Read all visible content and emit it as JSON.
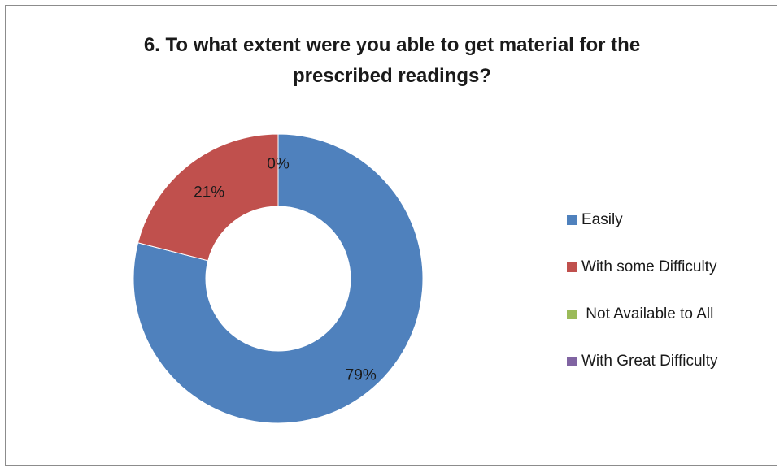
{
  "chart_data": {
    "type": "pie",
    "variant": "doughnut",
    "title_lines": [
      "6. To what extent were you able to get material for the",
      "prescribed readings?"
    ],
    "categories": [
      "Easily",
      "With some Difficulty",
      " Not Available to All",
      "With Great Difficulty"
    ],
    "values": [
      79,
      21,
      0,
      0
    ],
    "data_labels": [
      "79%",
      "21%",
      "0%",
      ""
    ],
    "colors": [
      "#4f81bd",
      "#c0504d",
      "#9bbb59",
      "#8064a2"
    ],
    "legend_position": "right"
  }
}
